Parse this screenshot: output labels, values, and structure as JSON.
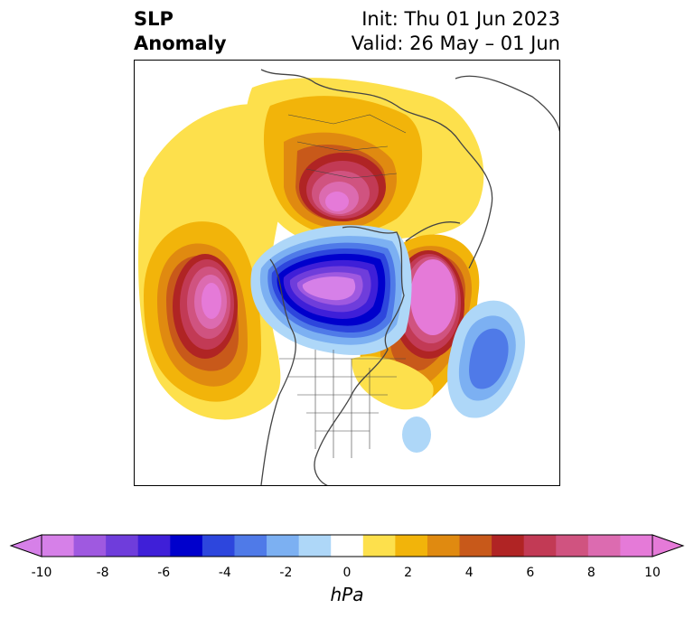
{
  "header": {
    "title_line1": "SLP",
    "title_line2": "Anomaly",
    "init_text": "Init: Thu 01 Jun 2023",
    "valid_text": "Valid: 26 May – 01 Jun"
  },
  "colorbar": {
    "unit_label": "hPa",
    "tick_labels": [
      "-10",
      "-8",
      "-6",
      "-4",
      "-2",
      "0",
      "2",
      "4",
      "6",
      "8",
      "10"
    ],
    "levels": [
      -10,
      -9,
      -8,
      -7,
      -6,
      -5,
      -4,
      -3,
      -2,
      -1,
      1,
      2,
      3,
      4,
      5,
      6,
      7,
      8,
      9,
      10
    ],
    "colors": [
      "#d680e8",
      "#9f59e0",
      "#6f3ddb",
      "#3f1fd8",
      "#0000cc",
      "#2d46dd",
      "#4f7ae8",
      "#7cb0f2",
      "#aed7f8",
      "#ffffff",
      "#fde04c",
      "#f2b40a",
      "#e08a10",
      "#c8591a",
      "#b02424",
      "#c23a55",
      "#d05380",
      "#dc6bb0",
      "#e57ad8"
    ],
    "extend": "both"
  },
  "map": {
    "projection": "north-polar-stereographic",
    "variable": "sea level pressure anomaly"
  }
}
